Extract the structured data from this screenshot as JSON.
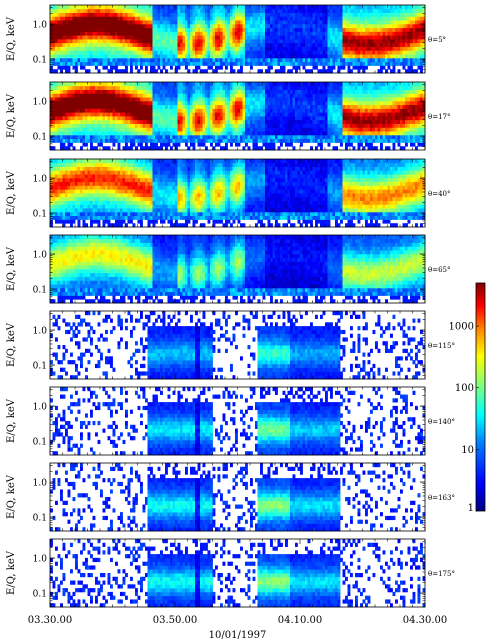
{
  "chart_data": {
    "type": "heatmap",
    "x_tick_labels": [
      "03.30.00",
      "03.50.00",
      "04.10.00",
      "04.30.00"
    ],
    "x_ticks_hours": [
      3.5,
      3.8333,
      4.1667,
      4.5
    ],
    "xlim_hours": [
      3.5,
      4.5
    ],
    "xlabel": "10/01/1997",
    "ylabel": "E/Q, keV",
    "yscale": "log",
    "ylim_keV": [
      0.04,
      3.5
    ],
    "y_tick_labels": [
      "0.1",
      "1.0"
    ],
    "y_ticks_keV": [
      0.1,
      1.0
    ],
    "colorbar": {
      "scale": "log",
      "range": [
        1,
        5000
      ],
      "tick_labels": [
        "1",
        "10",
        "100",
        "1000"
      ],
      "tick_values": [
        1,
        10,
        100,
        1000
      ],
      "colors": [
        "#000080",
        "#0000ff",
        "#0080ff",
        "#00ffff",
        "#80ff80",
        "#ffff00",
        "#ff8000",
        "#ff0000",
        "#800000"
      ]
    },
    "panels": [
      {
        "angle_label": "θ=5°",
        "low_angle": true,
        "intensity": 1.0
      },
      {
        "angle_label": "θ=17°",
        "low_angle": true,
        "intensity": 1.0
      },
      {
        "angle_label": "θ=40°",
        "low_angle": true,
        "intensity": 0.8
      },
      {
        "angle_label": "θ=65°",
        "low_angle": true,
        "intensity": 0.62
      },
      {
        "angle_label": "θ=115°",
        "low_angle": false,
        "intensity": 0.6
      },
      {
        "angle_label": "θ=140°",
        "low_angle": false,
        "intensity": 0.68
      },
      {
        "angle_label": "θ=163°",
        "low_angle": false,
        "intensity": 0.72
      },
      {
        "angle_label": "θ=175°",
        "low_angle": false,
        "intensity": 0.72
      }
    ]
  }
}
